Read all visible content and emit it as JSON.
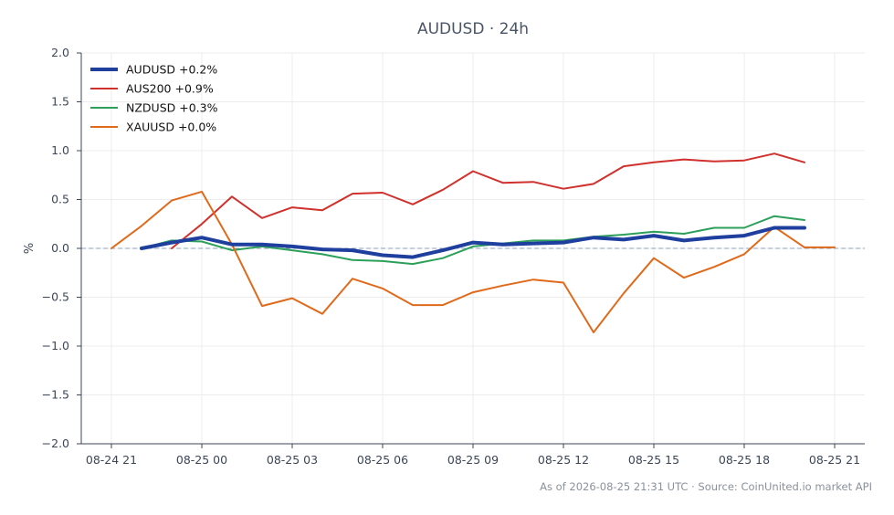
{
  "chart_data": {
    "type": "line",
    "title": "AUDUSD · 24h",
    "ylabel": "%",
    "xlabel": "",
    "ylim": [
      -2.0,
      2.0
    ],
    "yticks": [
      2.0,
      1.5,
      1.0,
      0.5,
      0.0,
      -0.5,
      -1.0,
      -1.5,
      -2.0
    ],
    "ytick_labels": [
      "2.0",
      "1.5",
      "1.0",
      "0.5",
      "0.0",
      "−0.5",
      "−1.0",
      "−1.5",
      "−2.0"
    ],
    "xlim": [
      "08-24 20:00",
      "08-25 22:00"
    ],
    "xtick_labels": [
      "08-24 21",
      "08-25 00",
      "08-25 03",
      "08-25 06",
      "08-25 09",
      "08-25 12",
      "08-25 15",
      "08-25 18",
      "08-25 21"
    ],
    "xtick_values": [
      "08-24 21:00",
      "08-25 00:00",
      "08-25 03:00",
      "08-25 06:00",
      "08-25 09:00",
      "08-25 12:00",
      "08-25 15:00",
      "08-25 18:00",
      "08-25 21:00"
    ],
    "grid": true,
    "zero_line": true,
    "legend_position": "top-left",
    "series": [
      {
        "name": "AUDUSD +0.2%",
        "color": "#1f3f9f",
        "x": [
          "08-24 22:00",
          "08-24 23:00",
          "08-25 00:00",
          "08-25 01:00",
          "08-25 02:00",
          "08-25 03:00",
          "08-25 04:00",
          "08-25 05:00",
          "08-25 06:00",
          "08-25 07:00",
          "08-25 08:00",
          "08-25 09:00",
          "08-25 10:00",
          "08-25 11:00",
          "08-25 12:00",
          "08-25 13:00",
          "08-25 14:00",
          "08-25 15:00",
          "08-25 16:00",
          "08-25 17:00",
          "08-25 18:00",
          "08-25 19:00",
          "08-25 20:00"
        ],
        "y": [
          0.0,
          0.06,
          0.11,
          0.04,
          0.04,
          0.02,
          -0.01,
          -0.02,
          -0.07,
          -0.09,
          -0.02,
          0.06,
          0.04,
          0.05,
          0.06,
          0.11,
          0.09,
          0.13,
          0.08,
          0.11,
          0.13,
          0.21,
          0.21
        ]
      },
      {
        "name": "AUS200 +0.9%",
        "color": "#d0312d",
        "x": [
          "08-24 23:00",
          "08-25 00:00",
          "08-25 01:00",
          "08-25 02:00",
          "08-25 03:00",
          "08-25 04:00",
          "08-25 05:00",
          "08-25 06:00",
          "08-25 07:00",
          "08-25 08:00",
          "08-25 09:00",
          "08-25 10:00",
          "08-25 11:00",
          "08-25 12:00",
          "08-25 13:00",
          "08-25 14:00",
          "08-25 15:00",
          "08-25 16:00",
          "08-25 17:00",
          "08-25 18:00",
          "08-25 19:00",
          "08-25 20:00"
        ],
        "y": [
          0.0,
          0.25,
          0.53,
          0.31,
          0.42,
          0.39,
          0.56,
          0.57,
          0.45,
          0.6,
          0.79,
          0.67,
          0.68,
          0.61,
          0.66,
          0.84,
          0.88,
          0.91,
          0.89,
          0.9,
          0.97,
          0.88
        ]
      },
      {
        "name": "NZDUSD +0.3%",
        "color": "#2ca05a",
        "x": [
          "08-24 22:00",
          "08-24 23:00",
          "08-25 00:00",
          "08-25 01:00",
          "08-25 02:00",
          "08-25 03:00",
          "08-25 04:00",
          "08-25 05:00",
          "08-25 06:00",
          "08-25 07:00",
          "08-25 08:00",
          "08-25 09:00",
          "08-25 10:00",
          "08-25 11:00",
          "08-25 12:00",
          "08-25 13:00",
          "08-25 14:00",
          "08-25 15:00",
          "08-25 16:00",
          "08-25 17:00",
          "08-25 18:00",
          "08-25 19:00",
          "08-25 20:00"
        ],
        "y": [
          0.0,
          0.08,
          0.07,
          -0.02,
          0.02,
          -0.02,
          -0.06,
          -0.12,
          -0.13,
          -0.16,
          -0.1,
          0.02,
          0.05,
          0.08,
          0.08,
          0.12,
          0.14,
          0.17,
          0.15,
          0.21,
          0.21,
          0.33,
          0.29
        ]
      },
      {
        "name": "XAUUSD +0.0%",
        "color": "#e06a1b",
        "x": [
          "08-24 21:00",
          "08-24 22:00",
          "08-24 23:00",
          "08-25 00:00",
          "08-25 01:00",
          "08-25 02:00",
          "08-25 03:00",
          "08-25 04:00",
          "08-25 05:00",
          "08-25 06:00",
          "08-25 07:00",
          "08-25 08:00",
          "08-25 09:00",
          "08-25 10:00",
          "08-25 11:00",
          "08-25 12:00",
          "08-25 13:00",
          "08-25 14:00",
          "08-25 15:00",
          "08-25 16:00",
          "08-25 17:00",
          "08-25 18:00",
          "08-25 19:00",
          "08-25 20:00",
          "08-25 21:00"
        ],
        "y": [
          0.0,
          0.23,
          0.49,
          0.58,
          0.04,
          -0.59,
          -0.51,
          -0.67,
          -0.31,
          -0.41,
          -0.58,
          -0.58,
          -0.45,
          -0.38,
          -0.32,
          -0.35,
          -0.86,
          -0.46,
          -0.1,
          -0.3,
          -0.19,
          -0.06,
          0.22,
          0.01,
          0.01
        ]
      }
    ]
  },
  "footer": {
    "text": "As of 2026-08-25 21:31 UTC · Source: CoinUnited.io market API"
  }
}
